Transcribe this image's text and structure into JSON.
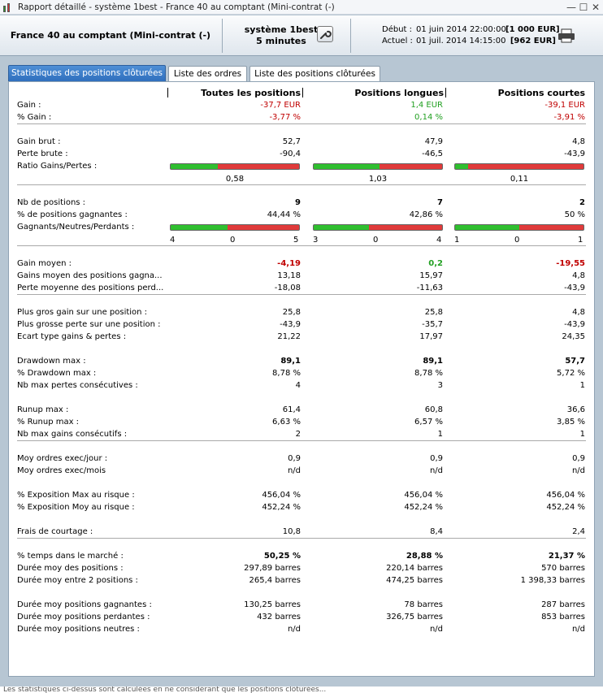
{
  "window": {
    "title": "Rapport détaillé - système 1best - France 40 au comptant (Mini-contrat  (-)"
  },
  "header": {
    "instrument": "France 40 au comptant (Mini-contrat  (-)",
    "system_name": "système 1best",
    "timeframe": "5 minutes",
    "start_label": "Début :",
    "start_date": "01 juin 2014 22:00:00",
    "start_amount": "[1 000 EUR]",
    "current_label": "Actuel :",
    "current_date": "01 juil. 2014 14:15:00",
    "current_amount": "[962 EUR]"
  },
  "tabs": [
    {
      "label": "Statistiques des positions clôturées",
      "active": true
    },
    {
      "label": "Liste des ordres",
      "active": false
    },
    {
      "label": "Liste des positions clôturées",
      "active": false
    }
  ],
  "columns": [
    "Toutes les positions",
    "Positions longues",
    "Positions courtes"
  ],
  "rows": {
    "gain": {
      "label": "Gain :",
      "v": [
        "-37,7 EUR",
        "1,4 EUR",
        "-39,1 EUR"
      ]
    },
    "pct_gain": {
      "label": "% Gain :",
      "v": [
        "-3,77 %",
        "0,14 %",
        "-3,91 %"
      ]
    },
    "gain_brut": {
      "label": "Gain brut :",
      "v": [
        "52,7",
        "47,9",
        "4,8"
      ]
    },
    "perte_brute": {
      "label": "Perte brute :",
      "v": [
        "-90,4",
        "-46,5",
        "-43,9"
      ]
    },
    "ratio": {
      "label": "Ratio Gains/Pertes :",
      "v": [
        "0,58",
        "1,03",
        "0,11"
      ],
      "fill": [
        0.37,
        0.51,
        0.1
      ]
    },
    "nb_pos": {
      "label": "Nb de positions :",
      "v": [
        "9",
        "7",
        "2"
      ]
    },
    "pct_gagn": {
      "label": "% de positions gagnantes :",
      "v": [
        "44,44 %",
        "42,86 %",
        "50 %"
      ]
    },
    "gnp": {
      "label": "Gagnants/Neutres/Perdants :",
      "fill": [
        0.4444,
        0.4286,
        0.5
      ],
      "counts": [
        [
          "4",
          "0",
          "5"
        ],
        [
          "3",
          "0",
          "4"
        ],
        [
          "1",
          "0",
          "1"
        ]
      ]
    },
    "gain_moy": {
      "label": "Gain moyen :",
      "v": [
        "-4,19",
        "0,2",
        "-19,55"
      ]
    },
    "gains_moy_gagn": {
      "label": "Gains moyen des positions gagnantes :",
      "v": [
        "13,18",
        "15,97",
        "4,8"
      ]
    },
    "perte_moy": {
      "label": "Perte moyenne des positions perdantes :",
      "v": [
        "-18,08",
        "-11,63",
        "-43,9"
      ]
    },
    "gros_gain": {
      "label": "Plus gros gain sur une position :",
      "v": [
        "25,8",
        "25,8",
        "4,8"
      ]
    },
    "grosse_perte": {
      "label": "Plus grosse perte sur une position :",
      "v": [
        "-43,9",
        "-35,7",
        "-43,9"
      ]
    },
    "ecart": {
      "label": "Ecart type gains & pertes :",
      "v": [
        "21,22",
        "17,97",
        "24,35"
      ]
    },
    "dd": {
      "label": "Drawdown max :",
      "v": [
        "89,1",
        "89,1",
        "57,7"
      ]
    },
    "pct_dd": {
      "label": "% Drawdown max :",
      "v": [
        "8,78 %",
        "8,78 %",
        "5,72 %"
      ]
    },
    "nb_pertes": {
      "label": "Nb max pertes consécutives :",
      "v": [
        "4",
        "3",
        "1"
      ]
    },
    "runup": {
      "label": "Runup max :",
      "v": [
        "61,4",
        "60,8",
        "36,6"
      ]
    },
    "pct_runup": {
      "label": "% Runup max :",
      "v": [
        "6,63 %",
        "6,57 %",
        "3,85 %"
      ]
    },
    "nb_gains": {
      "label": "Nb max gains consécutifs :",
      "v": [
        "2",
        "1",
        "1"
      ]
    },
    "moy_jour": {
      "label": "Moy ordres exec/jour :",
      "v": [
        "0,9",
        "0,9",
        "0,9"
      ]
    },
    "moy_mois": {
      "label": "Moy ordres exec/mois",
      "v": [
        "n/d",
        "n/d",
        "n/d"
      ]
    },
    "expo_max": {
      "label": "% Exposition Max au risque :",
      "v": [
        "456,04 %",
        "456,04 %",
        "456,04 %"
      ]
    },
    "expo_moy": {
      "label": "% Exposition Moy au risque :",
      "v": [
        "452,24 %",
        "452,24 %",
        "452,24 %"
      ]
    },
    "frais": {
      "label": "Frais de courtage :",
      "v": [
        "10,8",
        "8,4",
        "2,4"
      ]
    },
    "temps": {
      "label": "% temps dans le marché :",
      "v": [
        "50,25 %",
        "28,88 %",
        "21,37 %"
      ]
    },
    "duree_moy": {
      "label": "Durée moy des positions :",
      "v": [
        "297,89 barres",
        "220,14 barres",
        "570 barres"
      ]
    },
    "duree_entre": {
      "label": "Durée moy entre 2 positions :",
      "v": [
        "265,4 barres",
        "474,25 barres",
        "1 398,33 barres"
      ]
    },
    "duree_gagn": {
      "label": "Durée moy positions gagnantes :",
      "v": [
        "130,25 barres",
        "78 barres",
        "287 barres"
      ]
    },
    "duree_perd": {
      "label": "Durée moy positions perdantes :",
      "v": [
        "432 barres",
        "326,75 barres",
        "853 barres"
      ]
    },
    "duree_neutres": {
      "label": "Durée moy positions neutres :",
      "v": [
        "n/d",
        "n/d",
        "n/d"
      ]
    }
  },
  "status": "Les statistiques ci-dessus sont calculées en ne considérant que les positions clôturées..."
}
